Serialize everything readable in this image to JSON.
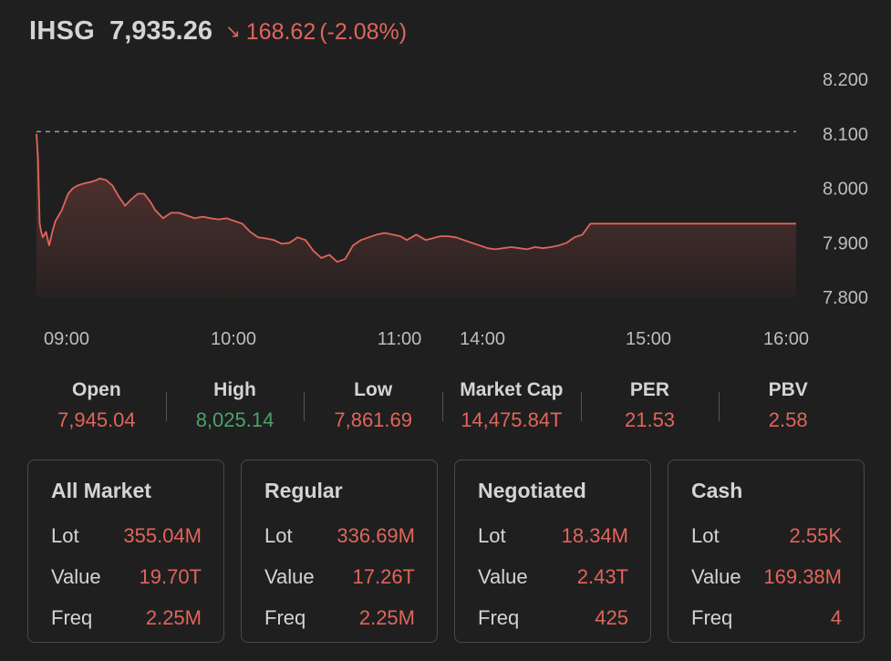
{
  "header": {
    "ticker": "IHSG",
    "price": "7,935.26",
    "change": "168.62",
    "change_pct": "(-2.08%)",
    "direction_icon": "arrow-down-right-icon"
  },
  "chart_data": {
    "type": "line",
    "series": [
      {
        "x": [
          0,
          1,
          2,
          3,
          4,
          6,
          8,
          10,
          12,
          14,
          16,
          18,
          20,
          23,
          26,
          29,
          32,
          35,
          38,
          40,
          44,
          48,
          52,
          56,
          60,
          64,
          68,
          72,
          75,
          80,
          85,
          90,
          95,
          100,
          105,
          110,
          115,
          120,
          125,
          130,
          135,
          140,
          145,
          150,
          155,
          160,
          165,
          170,
          175,
          180,
          185,
          190,
          195,
          200,
          205,
          210,
          215,
          220,
          225,
          230,
          234,
          237,
          240,
          243,
          246,
          250,
          255,
          260,
          265,
          270,
          275,
          280,
          285,
          290,
          295,
          300,
          305,
          310,
          315,
          320,
          325,
          330,
          335,
          340,
          345,
          350,
          355,
          360,
          365,
          370,
          375,
          380,
          385,
          390,
          395,
          400,
          405,
          410,
          415,
          420,
          425,
          430,
          435,
          440,
          445,
          450,
          455,
          460,
          465,
          470,
          475,
          480
        ],
        "values": [
          8100,
          8055,
          7935,
          7920,
          7910,
          7920,
          7895,
          7920,
          7940,
          7950,
          7960,
          7975,
          7990,
          8000,
          8005,
          8008,
          8010,
          8012,
          8015,
          8018,
          8015,
          8005,
          7985,
          7968,
          7980,
          7990,
          7990,
          7975,
          7960,
          7945,
          7955,
          7955,
          7950,
          7945,
          7948,
          7945,
          7943,
          7945,
          7940,
          7935,
          7920,
          7910,
          7908,
          7905,
          7898,
          7900,
          7910,
          7905,
          7885,
          7872,
          7878,
          7865,
          7870,
          7895,
          7905,
          7910,
          7915,
          7918,
          7915,
          7912,
          7905,
          7910,
          7915,
          7910,
          7905,
          7908,
          7912,
          7912,
          7910,
          7905,
          7900,
          7895,
          7890,
          7888,
          7890,
          7892,
          7890,
          7888,
          7892,
          7890,
          7892,
          7895,
          7900,
          7910,
          7915,
          7935,
          7935,
          7935,
          7935,
          7935,
          7935,
          7935,
          7935,
          7935,
          7935,
          7935,
          7935,
          7935,
          7935,
          7935,
          7935,
          7935,
          7935,
          7935,
          7935,
          7935,
          7935,
          7935,
          7935,
          7935,
          7935,
          7935
        ]
      }
    ],
    "previous_close": 8103.88,
    "y_ticks": [
      "8.200",
      "8.100",
      "8.000",
      "7.900",
      "7.800"
    ],
    "x_ticks": [
      "09:00",
      "10:00",
      "11:00",
      "14:00",
      "15:00",
      "16:00"
    ],
    "ylim": [
      7800,
      8200
    ],
    "grid": false,
    "colors": {
      "line": "#e0655b",
      "fill": "#e0655b",
      "reference": "#9a9a9a"
    }
  },
  "stats": [
    {
      "label": "Open",
      "value": "7,945.04",
      "tone": "red"
    },
    {
      "label": "High",
      "value": "8,025.14",
      "tone": "green"
    },
    {
      "label": "Low",
      "value": "7,861.69",
      "tone": "red"
    },
    {
      "label": "Market Cap",
      "value": "14,475.84T",
      "tone": "red"
    },
    {
      "label": "PER",
      "value": "21.53",
      "tone": "red"
    },
    {
      "label": "PBV",
      "value": "2.58",
      "tone": "red"
    }
  ],
  "cards": [
    {
      "title": "All Market",
      "rows": [
        {
          "label": "Lot",
          "value": "355.04M"
        },
        {
          "label": "Value",
          "value": "19.70T"
        },
        {
          "label": "Freq",
          "value": "2.25M"
        }
      ]
    },
    {
      "title": "Regular",
      "rows": [
        {
          "label": "Lot",
          "value": "336.69M"
        },
        {
          "label": "Value",
          "value": "17.26T"
        },
        {
          "label": "Freq",
          "value": "2.25M"
        }
      ]
    },
    {
      "title": "Negotiated",
      "rows": [
        {
          "label": "Lot",
          "value": "18.34M"
        },
        {
          "label": "Value",
          "value": "2.43T"
        },
        {
          "label": "Freq",
          "value": "425"
        }
      ]
    },
    {
      "title": "Cash",
      "rows": [
        {
          "label": "Lot",
          "value": "2.55K"
        },
        {
          "label": "Value",
          "value": "169.38M"
        },
        {
          "label": "Freq",
          "value": "4"
        }
      ]
    }
  ]
}
